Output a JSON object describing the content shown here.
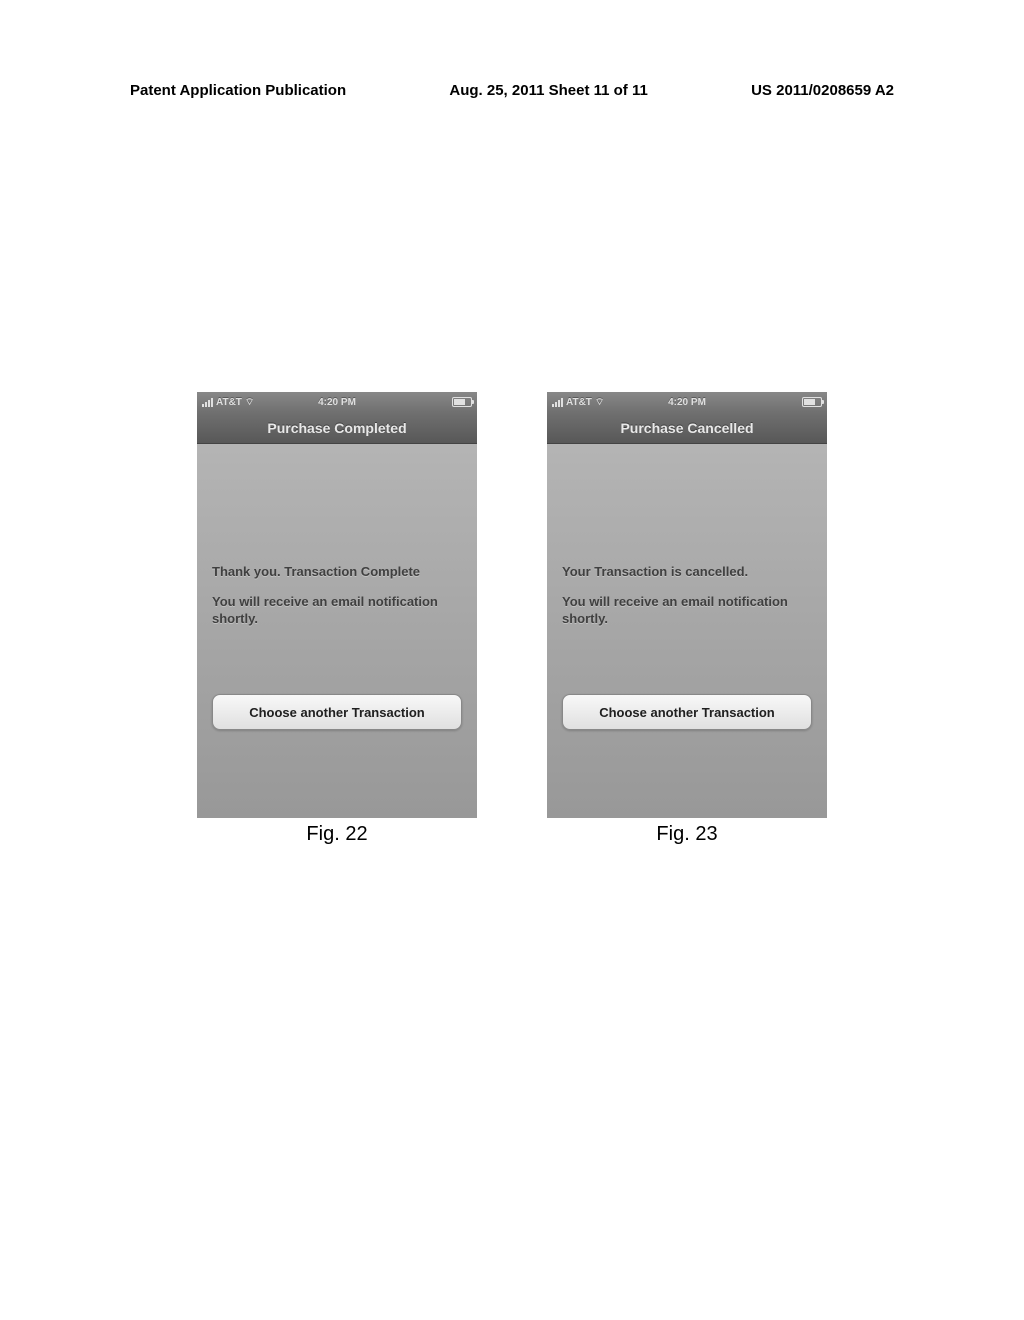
{
  "header": {
    "publication": "Patent Application Publication",
    "date": "Aug. 25, 2011",
    "sheet": "Sheet 11 of 11",
    "docnum": "US 2011/0208659 A2"
  },
  "screens": [
    {
      "statusbar": {
        "carrier": "AT&T",
        "time": "4:20 PM"
      },
      "titlebar": "Purchase Completed",
      "message1": "Thank you. Transaction Complete",
      "message2": "You will receive an email notification shortly.",
      "button": "Choose another Transaction",
      "figlabel": "Fig. 22"
    },
    {
      "statusbar": {
        "carrier": "AT&T",
        "time": "4:20 PM"
      },
      "titlebar": "Purchase Cancelled",
      "message1": "Your Transaction is cancelled.",
      "message2": "You will receive an email notification shortly.",
      "button": "Choose another Transaction",
      "figlabel": "Fig. 23"
    }
  ],
  "colors": {
    "page_bg": "#ffffff",
    "header_text": "#000000",
    "screen_bg_top": "#b8b8b8",
    "screen_bg_bottom": "#989898",
    "statusbar_bg": "#707070",
    "titlebar_bg": "#585858",
    "titlebar_text": "#e8e8e8",
    "message_text": "#404040",
    "button_bg": "#e0e0e0",
    "button_text": "#202020"
  }
}
